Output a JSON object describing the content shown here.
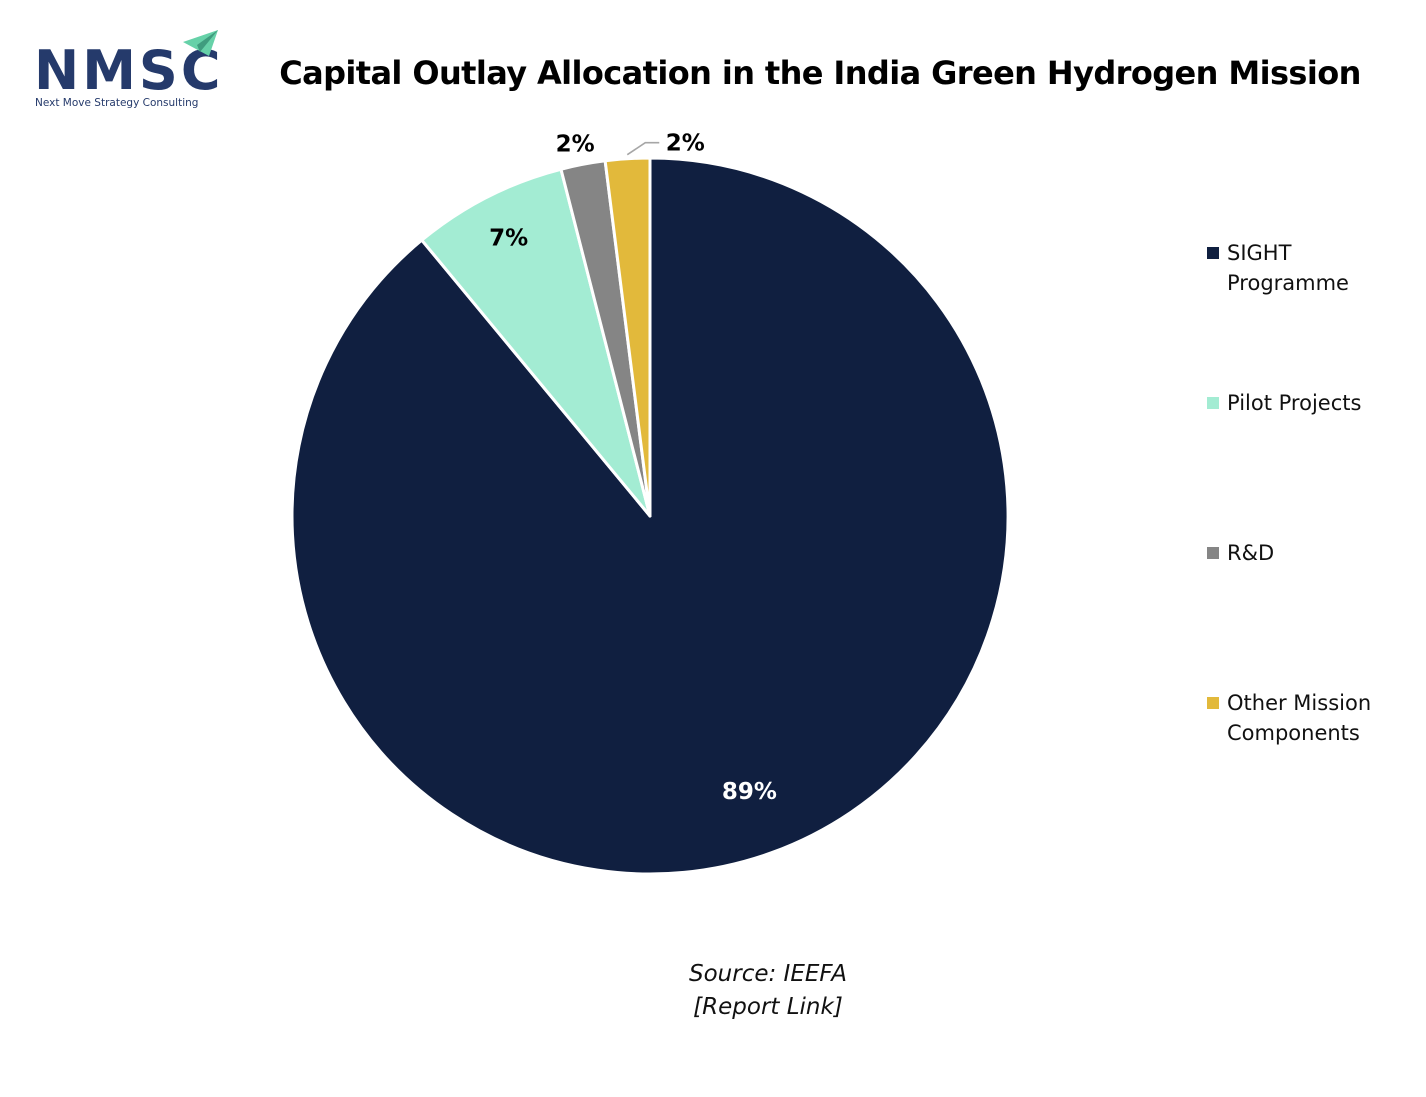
{
  "logo": {
    "text": "NMSC",
    "subtitle": "Next Move Strategy Consulting",
    "text_color": "#253a6b",
    "arrow_color": "#66d1a8"
  },
  "chart_data": {
    "type": "pie",
    "title": "Capital Outlay Allocation in the India Green Hydrogen Mission",
    "start": "12 o'clock",
    "direction": "clockwise",
    "legend_position": "right",
    "slices": [
      {
        "label": "SIGHT Programme",
        "value": 89,
        "display": "89%",
        "color": "#101f40",
        "label_color": "#ffffff"
      },
      {
        "label": "Pilot Projects",
        "value": 7,
        "display": "7%",
        "color": "#a3ecd3",
        "label_color": "#000000"
      },
      {
        "label": "R&D",
        "value": 2,
        "display": "2%",
        "color": "#858585",
        "label_color": "#000000"
      },
      {
        "label": "Other Mission Components",
        "value": 2,
        "display": "2%",
        "color": "#e2b93b",
        "label_color": "#000000"
      }
    ]
  },
  "legend": {
    "items": [
      {
        "lines": [
          "SIGHT",
          "Programme"
        ],
        "color": "#101f40"
      },
      {
        "lines": [
          "Pilot Projects"
        ],
        "color": "#a3ecd3"
      },
      {
        "lines": [
          "R&D"
        ],
        "color": "#858585"
      },
      {
        "lines": [
          "Other Mission",
          "Components"
        ],
        "color": "#e2b93b"
      }
    ]
  },
  "source": {
    "line1": "Source:  IEEFA",
    "line2": "[Report Link]"
  }
}
